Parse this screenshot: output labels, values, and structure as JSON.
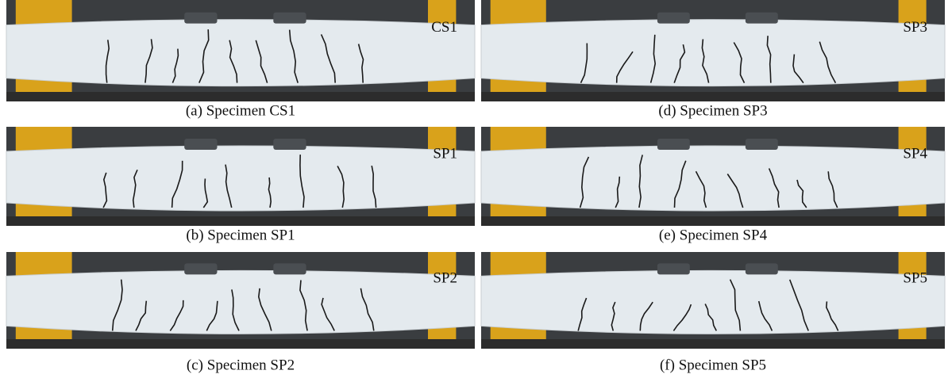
{
  "panels": [
    {
      "label": "CS1",
      "caption": "(a) Specimen CS1"
    },
    {
      "label": "SP3",
      "caption": "(d) Specimen SP3"
    },
    {
      "label": "SP1",
      "caption": "(b) Specimen SP1"
    },
    {
      "label": "SP4",
      "caption": "(e) Specimen SP4"
    },
    {
      "label": "SP2",
      "caption": "(c) Specimen SP2"
    },
    {
      "label": "SP5",
      "caption": "(f) Specimen SP5"
    }
  ]
}
